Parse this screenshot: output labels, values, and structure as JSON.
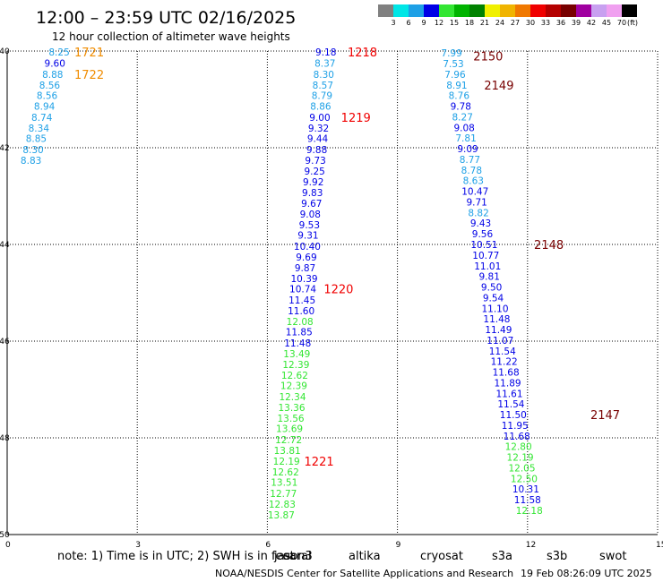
{
  "chart_data": {
    "type": "scatter",
    "title": "12:00 – 23:59 UTC 02/16/2025",
    "subtitle": "12 hour collection of altimeter wave heights",
    "xlim": [
      0,
      15
    ],
    "ylim": [
      -50,
      -40
    ],
    "x_ticks": [
      {
        "value": 0,
        "label": "0"
      },
      {
        "value": 3,
        "label": "3"
      },
      {
        "value": 6,
        "label": "6"
      },
      {
        "value": 9,
        "label": "9"
      },
      {
        "value": 12,
        "label": "12"
      },
      {
        "value": 15,
        "label": "15"
      }
    ],
    "y_ticks": [
      {
        "value": -40,
        "label": "-40"
      },
      {
        "value": -42,
        "label": "-42"
      },
      {
        "value": -44,
        "label": "-44"
      },
      {
        "value": -46,
        "label": "-46"
      },
      {
        "value": -48,
        "label": "-48"
      },
      {
        "value": -50,
        "label": "-50"
      }
    ],
    "grid": true,
    "legend": {
      "placement": "top-right",
      "unit": "(ft)",
      "bins": [
        {
          "label": "3",
          "color": "#808080"
        },
        {
          "label": "6",
          "color": "#00e6e6"
        },
        {
          "label": "9",
          "color": "#1ea0e6"
        },
        {
          "label": "12",
          "color": "#0000e6"
        },
        {
          "label": "15",
          "color": "#33e633"
        },
        {
          "label": "18",
          "color": "#00b400"
        },
        {
          "label": "21",
          "color": "#008200"
        },
        {
          "label": "24",
          "color": "#f0f000"
        },
        {
          "label": "27",
          "color": "#f0b400"
        },
        {
          "label": "30",
          "color": "#f07800"
        },
        {
          "label": "33",
          "color": "#f00000"
        },
        {
          "label": "36",
          "color": "#b40000"
        },
        {
          "label": "39",
          "color": "#780000"
        },
        {
          "label": "42",
          "color": "#a000a0"
        },
        {
          "label": "45",
          "color": "#c8a0f0"
        },
        {
          "label": "70",
          "color": "#f0a0f0"
        },
        {
          "label": "",
          "color": "#000000"
        }
      ]
    },
    "passes": [
      {
        "points": [
          {
            "x": 1.2,
            "y": -40.02,
            "v": "8.25"
          },
          {
            "x": 1.1,
            "y": -40.25,
            "v": "9.60"
          },
          {
            "x": 1.05,
            "y": -40.48,
            "v": "8.88"
          },
          {
            "x": 0.98,
            "y": -40.7,
            "v": "8.56"
          },
          {
            "x": 0.92,
            "y": -40.92,
            "v": "8.56"
          },
          {
            "x": 0.86,
            "y": -41.14,
            "v": "8.94"
          },
          {
            "x": 0.8,
            "y": -41.37,
            "v": "8.74"
          },
          {
            "x": 0.73,
            "y": -41.59,
            "v": "8.34"
          },
          {
            "x": 0.67,
            "y": -41.81,
            "v": "8.85"
          },
          {
            "x": 0.6,
            "y": -42.04,
            "v": "8.30"
          },
          {
            "x": 0.55,
            "y": -42.26,
            "v": "8.83"
          }
        ]
      },
      {
        "points": [
          {
            "x": 7.35,
            "y": -40.02,
            "v": "9.18"
          },
          {
            "x": 7.33,
            "y": -40.25,
            "v": "8.37"
          },
          {
            "x": 7.3,
            "y": -40.48,
            "v": "8.30"
          },
          {
            "x": 7.28,
            "y": -40.7,
            "v": "8.57"
          },
          {
            "x": 7.26,
            "y": -40.92,
            "v": "8.79"
          },
          {
            "x": 7.23,
            "y": -41.14,
            "v": "8.86"
          },
          {
            "x": 7.21,
            "y": -41.37,
            "v": "9.00"
          },
          {
            "x": 7.18,
            "y": -41.59,
            "v": "9.32"
          },
          {
            "x": 7.16,
            "y": -41.81,
            "v": "9.44"
          },
          {
            "x": 7.14,
            "y": -42.04,
            "v": "9.88"
          },
          {
            "x": 7.11,
            "y": -42.26,
            "v": "9.73"
          },
          {
            "x": 7.09,
            "y": -42.48,
            "v": "9.25"
          },
          {
            "x": 7.06,
            "y": -42.7,
            "v": "9.92"
          },
          {
            "x": 7.04,
            "y": -42.93,
            "v": "9.83"
          },
          {
            "x": 7.02,
            "y": -43.15,
            "v": "9.67"
          },
          {
            "x": 6.99,
            "y": -43.37,
            "v": "9.08"
          },
          {
            "x": 6.97,
            "y": -43.59,
            "v": "9.53"
          },
          {
            "x": 6.94,
            "y": -43.81,
            "v": "9.31"
          },
          {
            "x": 6.92,
            "y": -44.04,
            "v": "10.40"
          },
          {
            "x": 6.9,
            "y": -44.26,
            "v": "9.69"
          },
          {
            "x": 6.87,
            "y": -44.48,
            "v": "9.87"
          },
          {
            "x": 6.85,
            "y": -44.7,
            "v": "10.39"
          },
          {
            "x": 6.82,
            "y": -44.92,
            "v": "10.74"
          },
          {
            "x": 6.8,
            "y": -45.15,
            "v": "11.45"
          },
          {
            "x": 6.78,
            "y": -45.37,
            "v": "11.60"
          },
          {
            "x": 6.75,
            "y": -45.59,
            "v": "12.08"
          },
          {
            "x": 6.73,
            "y": -45.81,
            "v": "11.85"
          },
          {
            "x": 6.7,
            "y": -46.04,
            "v": "11.48"
          },
          {
            "x": 6.68,
            "y": -46.26,
            "v": "13.49"
          },
          {
            "x": 6.66,
            "y": -46.48,
            "v": "12.39"
          },
          {
            "x": 6.63,
            "y": -46.7,
            "v": "12.62"
          },
          {
            "x": 6.61,
            "y": -46.92,
            "v": "12.39"
          },
          {
            "x": 6.58,
            "y": -47.15,
            "v": "12.34"
          },
          {
            "x": 6.56,
            "y": -47.37,
            "v": "13.36"
          },
          {
            "x": 6.54,
            "y": -47.59,
            "v": "13.56"
          },
          {
            "x": 6.51,
            "y": -47.81,
            "v": "13.69"
          },
          {
            "x": 6.49,
            "y": -48.04,
            "v": "12.72"
          },
          {
            "x": 6.46,
            "y": -48.26,
            "v": "13.81"
          },
          {
            "x": 6.44,
            "y": -48.48,
            "v": "12.19"
          },
          {
            "x": 6.42,
            "y": -48.7,
            "v": "12.62"
          },
          {
            "x": 6.39,
            "y": -48.92,
            "v": "13.51"
          },
          {
            "x": 6.37,
            "y": -49.15,
            "v": "12.77"
          },
          {
            "x": 6.34,
            "y": -49.37,
            "v": "12.83"
          },
          {
            "x": 6.32,
            "y": -49.59,
            "v": "13.87"
          }
        ]
      },
      {
        "points": [
          {
            "x": 10.25,
            "y": -40.04,
            "v": "7.99"
          },
          {
            "x": 10.29,
            "y": -40.26,
            "v": "7.53"
          },
          {
            "x": 10.33,
            "y": -40.48,
            "v": "7.96"
          },
          {
            "x": 10.37,
            "y": -40.7,
            "v": "8.91"
          },
          {
            "x": 10.42,
            "y": -40.92,
            "v": "8.76"
          },
          {
            "x": 10.46,
            "y": -41.14,
            "v": "9.78"
          },
          {
            "x": 10.5,
            "y": -41.36,
            "v": "8.27"
          },
          {
            "x": 10.54,
            "y": -41.58,
            "v": "9.08"
          },
          {
            "x": 10.58,
            "y": -41.8,
            "v": "7.81"
          },
          {
            "x": 10.62,
            "y": -42.02,
            "v": "9.09"
          },
          {
            "x": 10.67,
            "y": -42.24,
            "v": "8.77"
          },
          {
            "x": 10.71,
            "y": -42.46,
            "v": "8.78"
          },
          {
            "x": 10.75,
            "y": -42.68,
            "v": "8.63"
          },
          {
            "x": 10.79,
            "y": -42.9,
            "v": "10.47"
          },
          {
            "x": 10.83,
            "y": -43.12,
            "v": "9.71"
          },
          {
            "x": 10.87,
            "y": -43.34,
            "v": "8.82"
          },
          {
            "x": 10.92,
            "y": -43.56,
            "v": "9.43"
          },
          {
            "x": 10.96,
            "y": -43.78,
            "v": "9.56"
          },
          {
            "x": 11.0,
            "y": -44.0,
            "v": "10.51"
          },
          {
            "x": 11.04,
            "y": -44.22,
            "v": "10.77"
          },
          {
            "x": 11.08,
            "y": -44.44,
            "v": "11.01"
          },
          {
            "x": 11.12,
            "y": -44.66,
            "v": "9.81"
          },
          {
            "x": 11.17,
            "y": -44.88,
            "v": "9.50"
          },
          {
            "x": 11.21,
            "y": -45.1,
            "v": "9.54"
          },
          {
            "x": 11.25,
            "y": -45.32,
            "v": "11.10"
          },
          {
            "x": 11.29,
            "y": -45.54,
            "v": "11.48"
          },
          {
            "x": 11.33,
            "y": -45.76,
            "v": "11.49"
          },
          {
            "x": 11.37,
            "y": -45.98,
            "v": "11.07"
          },
          {
            "x": 11.42,
            "y": -46.2,
            "v": "11.54"
          },
          {
            "x": 11.46,
            "y": -46.42,
            "v": "11.22"
          },
          {
            "x": 11.5,
            "y": -46.64,
            "v": "11.68"
          },
          {
            "x": 11.54,
            "y": -46.86,
            "v": "11.89"
          },
          {
            "x": 11.58,
            "y": -47.08,
            "v": "11.61"
          },
          {
            "x": 11.62,
            "y": -47.3,
            "v": "11.54"
          },
          {
            "x": 11.67,
            "y": -47.52,
            "v": "11.50"
          },
          {
            "x": 11.71,
            "y": -47.74,
            "v": "11.95"
          },
          {
            "x": 11.75,
            "y": -47.96,
            "v": "11.68"
          },
          {
            "x": 11.79,
            "y": -48.18,
            "v": "12.80"
          },
          {
            "x": 11.83,
            "y": -48.4,
            "v": "12.19"
          },
          {
            "x": 11.87,
            "y": -48.62,
            "v": "12.05"
          },
          {
            "x": 11.92,
            "y": -48.84,
            "v": "12.50"
          },
          {
            "x": 11.96,
            "y": -49.06,
            "v": "10.31"
          },
          {
            "x": 12.0,
            "y": -49.28,
            "v": "11.58"
          },
          {
            "x": 12.04,
            "y": -49.5,
            "v": "12.18"
          }
        ]
      }
    ],
    "pass_labels": [
      {
        "label": "1721",
        "x": 1.55,
        "y": -40.02,
        "color": "#f08c00"
      },
      {
        "label": "1722",
        "x": 1.55,
        "y": -40.48,
        "color": "#f08c00"
      },
      {
        "label": "1218",
        "x": 7.85,
        "y": -40.02,
        "color": "#f00000"
      },
      {
        "label": "1219",
        "x": 7.7,
        "y": -41.37,
        "color": "#f00000"
      },
      {
        "label": "1220",
        "x": 7.3,
        "y": -44.92,
        "color": "#f00000"
      },
      {
        "label": "1221",
        "x": 6.85,
        "y": -48.48,
        "color": "#f00000"
      },
      {
        "label": "2150",
        "x": 10.75,
        "y": -40.1,
        "color": "#780000"
      },
      {
        "label": "2149",
        "x": 11.0,
        "y": -40.7,
        "color": "#780000"
      },
      {
        "label": "2148",
        "x": 12.15,
        "y": -44.0,
        "color": "#780000"
      },
      {
        "label": "2147",
        "x": 13.45,
        "y": -47.52,
        "color": "#780000"
      }
    ],
    "missions": [
      {
        "name": "jason3",
        "color": "#008200"
      },
      {
        "name": "saral",
        "color": "#33e633"
      },
      {
        "name": "altika",
        "color": "#f08c00"
      },
      {
        "name": "cryosat",
        "color": "#f00000"
      },
      {
        "name": "s3a",
        "color": "#780000"
      },
      {
        "name": "s3b",
        "color": "#c8a0f0"
      },
      {
        "name": "swot",
        "color": "#f0a0f0"
      }
    ]
  },
  "note": "note:  1) Time is in UTC; 2) SWH is in feet",
  "credit": "NOAA/NESDIS Center for Satellite Applications and Research",
  "timestamp": "19 Feb 08:26:09 UTC 2025"
}
